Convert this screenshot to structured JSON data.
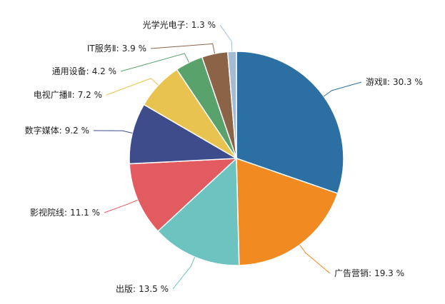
{
  "chart_data": {
    "type": "pie",
    "categories": [
      "游戏Ⅱ",
      "广告营销",
      "出版",
      "影视院线",
      "数字媒体",
      "电视广播Ⅱ",
      "通用设备",
      "IT服务Ⅱ",
      "光学光电子"
    ],
    "separator": ":",
    "values": [
      30.3,
      19.3,
      13.5,
      11.1,
      9.2,
      7.2,
      4.2,
      3.9,
      1.3
    ],
    "value_labels": [
      "30.3 %",
      "19.3 %",
      "13.5 %",
      "11.1 %",
      "9.2 %",
      "7.2 %",
      "4.2 %",
      "3.9 %",
      "1.3 %"
    ],
    "colors": [
      "#2c70a3",
      "#f08a21",
      "#6cc3c0",
      "#e25b60",
      "#3e4c8c",
      "#e8c350",
      "#5aa26c",
      "#8b6448",
      "#a3bcd4"
    ]
  }
}
